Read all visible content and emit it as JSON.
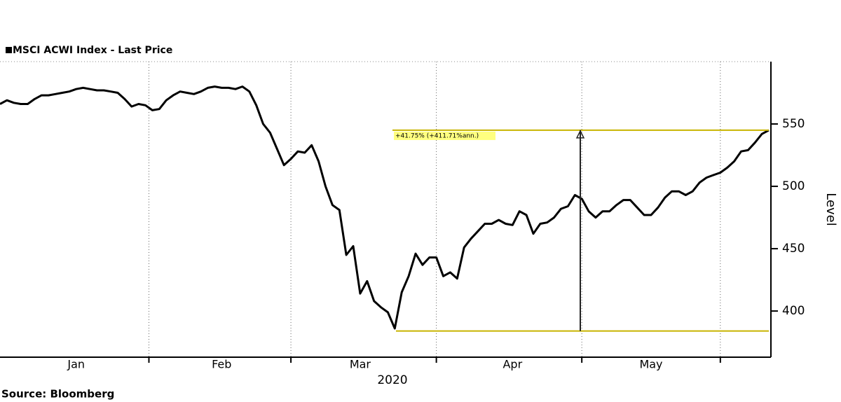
{
  "chart_data": {
    "type": "line",
    "title": "MSCI ACWI Index - Last Price",
    "y_label": "Level",
    "x_label": "2020",
    "source": "Source: Bloomberg",
    "categories": [
      null,
      null,
      null,
      null,
      null,
      null,
      null,
      null,
      null,
      null,
      null,
      "Jan",
      null,
      null,
      null,
      null,
      null,
      null,
      null,
      null,
      null,
      null,
      null,
      null,
      null,
      null,
      null,
      null,
      null,
      null,
      null,
      null,
      "Feb",
      null,
      null,
      null,
      null,
      null,
      null,
      null,
      null,
      null,
      null,
      null,
      null,
      null,
      null,
      null,
      null,
      null,
      null,
      null,
      "Mar",
      null,
      null,
      null,
      null,
      null,
      null,
      null,
      null,
      null,
      null,
      null,
      null,
      null,
      null,
      null,
      null,
      null,
      null,
      null,
      null,
      null,
      "Apr",
      null,
      null,
      null,
      null,
      null,
      null,
      null,
      null,
      null,
      null,
      null,
      null,
      null,
      null,
      null,
      null,
      null,
      null,
      null,
      "May",
      null,
      null,
      null,
      null,
      null,
      null,
      null,
      null,
      null,
      null,
      null,
      null,
      null,
      null,
      null,
      null,
      null
    ],
    "series": [
      {
        "name": "MSCI ACWI Index - Last Price",
        "color": "#000000",
        "values": [
          566,
          569,
          567,
          566,
          566,
          570,
          573,
          573,
          574,
          575,
          576,
          578,
          579,
          578,
          577,
          577,
          576,
          575,
          570,
          564,
          566,
          565,
          561,
          562,
          569,
          573,
          576,
          575,
          574,
          576,
          579,
          580,
          579,
          579,
          578,
          580,
          576,
          565,
          550,
          543,
          530,
          517,
          522,
          528,
          527,
          533,
          520,
          500,
          485,
          481,
          445,
          452,
          414,
          424,
          408,
          403,
          399,
          386,
          415,
          428,
          446,
          437,
          443,
          443,
          428,
          431,
          426,
          451,
          458,
          464,
          470,
          470,
          473,
          470,
          469,
          480,
          477,
          462,
          470,
          471,
          475,
          482,
          484,
          493,
          490,
          480,
          475,
          480,
          480,
          485,
          489,
          489,
          483,
          477,
          477,
          483,
          491,
          496,
          496,
          493,
          496,
          503,
          507,
          509,
          511,
          515,
          520,
          528,
          529,
          535,
          542,
          545
        ]
      }
    ],
    "annotation": {
      "text": "+41.75% (+411.71%ann.)",
      "low": 384,
      "high": 545,
      "color": "#c8b400"
    },
    "ylim": [
      363,
      600
    ],
    "yticks": [
      400,
      450,
      500,
      550
    ]
  }
}
